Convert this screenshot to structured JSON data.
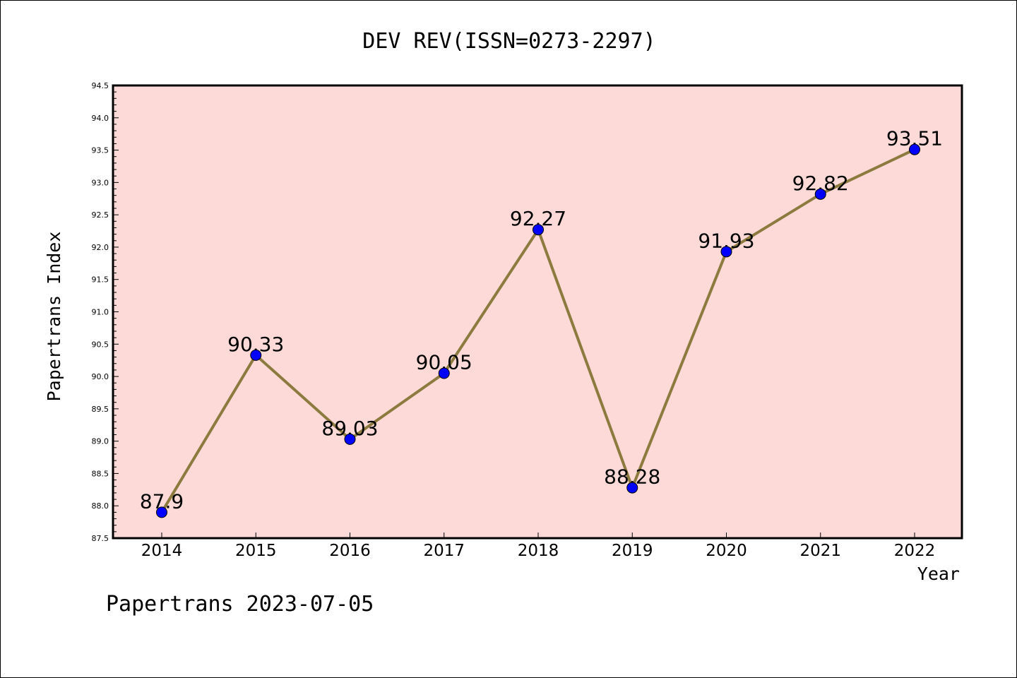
{
  "chart_data": {
    "type": "line",
    "title": "DEV REV(ISSN=0273-2297)",
    "xlabel": "Year",
    "ylabel": "Papertrans Index",
    "categories": [
      "2014",
      "2015",
      "2016",
      "2017",
      "2018",
      "2019",
      "2020",
      "2021",
      "2022"
    ],
    "values": [
      87.9,
      90.33,
      89.03,
      90.05,
      92.27,
      88.28,
      91.93,
      92.82,
      93.51
    ],
    "data_labels": [
      "87.9",
      "90.33",
      "89.03",
      "90.05",
      "92.27",
      "88.28",
      "91.93",
      "92.82",
      "93.51"
    ],
    "ylim": [
      87.5,
      94.5
    ],
    "y_ticks": [
      "87.5",
      "88.0",
      "88.5",
      "89.0",
      "89.5",
      "90.0",
      "90.5",
      "91.0",
      "91.5",
      "92.0",
      "92.5",
      "93.0",
      "93.5",
      "94.0",
      "94.5"
    ],
    "grid": false,
    "legend": "none",
    "colors": {
      "plot_background": "#fddad8",
      "line": "#8c7a3e",
      "marker": "#0000ff"
    }
  },
  "footer": {
    "text": "Papertrans 2023-07-05"
  }
}
